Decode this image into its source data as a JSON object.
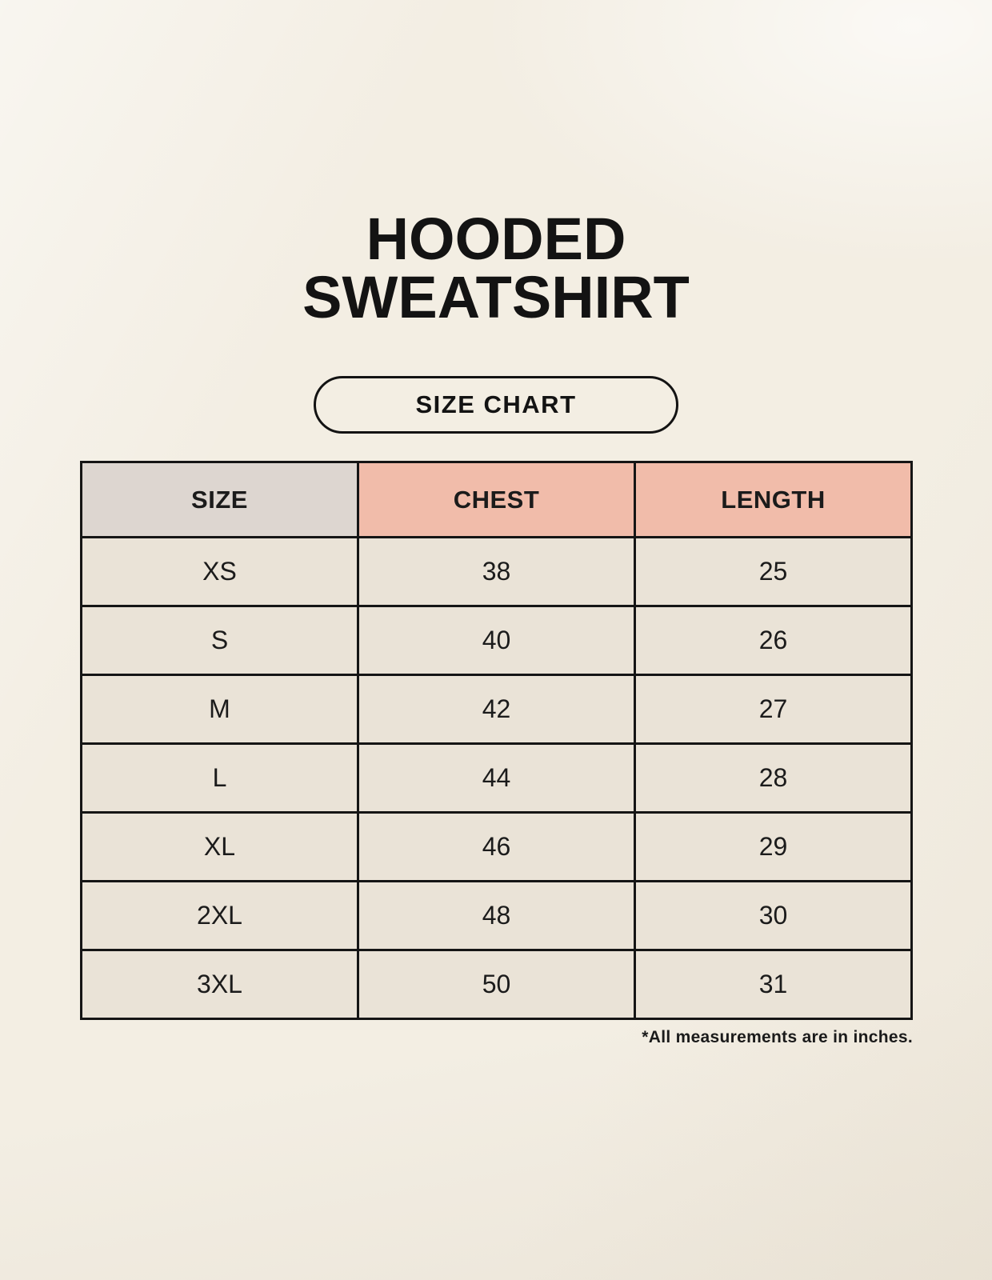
{
  "page": {
    "title_line1": "HOODED",
    "title_line2": "SWEATSHIRT",
    "button_label": "SIZE CHART",
    "footnote": "*All measurements are in inches."
  },
  "colors": {
    "page_bg": "#f7f3ea",
    "header_accent": "#f1bcaa",
    "size_column_bg": "#ddd6d0",
    "cell_bg": "#eae3d7",
    "table_border": "#151515",
    "text": "#1b1b1b"
  },
  "chart_data": {
    "type": "table",
    "title": "HOODED SWEATSHIRT",
    "subtitle": "SIZE CHART",
    "columns": [
      "SIZE",
      "CHEST",
      "LENGTH"
    ],
    "rows": [
      [
        "XS",
        "38",
        "25"
      ],
      [
        "S",
        "40",
        "26"
      ],
      [
        "M",
        "42",
        "27"
      ],
      [
        "L",
        "44",
        "28"
      ],
      [
        "XL",
        "46",
        "29"
      ],
      [
        "2XL",
        "48",
        "30"
      ],
      [
        "3XL",
        "50",
        "31"
      ]
    ],
    "units": "inches"
  }
}
